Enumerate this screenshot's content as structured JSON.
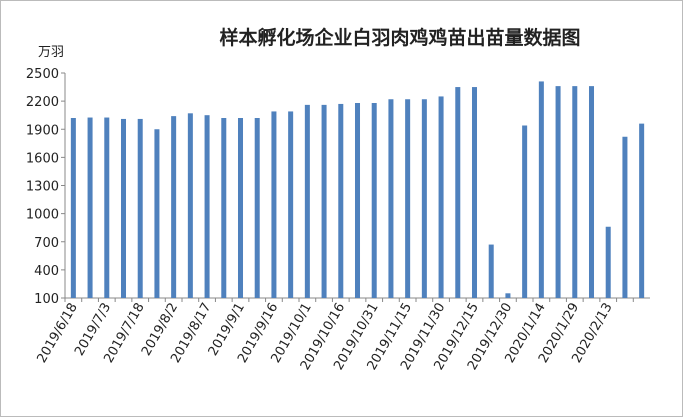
{
  "chart_data": {
    "type": "bar",
    "title": "样本孵化场企业白羽肉鸡鸡苗出苗量数据图",
    "y_label": "万羽",
    "categories": [
      "2019/6/18",
      null,
      "2019/7/3",
      null,
      "2019/7/18",
      null,
      "2019/8/2",
      null,
      "2019/8/17",
      null,
      "2019/9/1",
      null,
      "2019/9/16",
      null,
      "2019/10/1",
      null,
      "2019/10/16",
      null,
      "2019/10/31",
      null,
      "2019/11/15",
      null,
      "2019/11/30",
      null,
      "2019/12/15",
      null,
      "2019/12/30",
      null,
      "2020/1/14",
      null,
      "2020/1/29",
      null,
      "2020/2/13",
      null,
      null
    ],
    "values": [
      2020,
      2025,
      2025,
      2010,
      2010,
      1900,
      2040,
      2070,
      2050,
      2020,
      2020,
      2020,
      2090,
      2090,
      2160,
      2160,
      2170,
      2180,
      2180,
      2220,
      2220,
      2220,
      2250,
      2350,
      2350,
      670,
      150,
      1940,
      2410,
      2360,
      2360,
      2360,
      860,
      1820,
      1960
    ],
    "color": "#4f81bd",
    "ylim": [
      100,
      2500
    ],
    "yticks": [
      100,
      400,
      700,
      1000,
      1300,
      1600,
      1900,
      2200,
      2500
    ],
    "grid": false
  }
}
